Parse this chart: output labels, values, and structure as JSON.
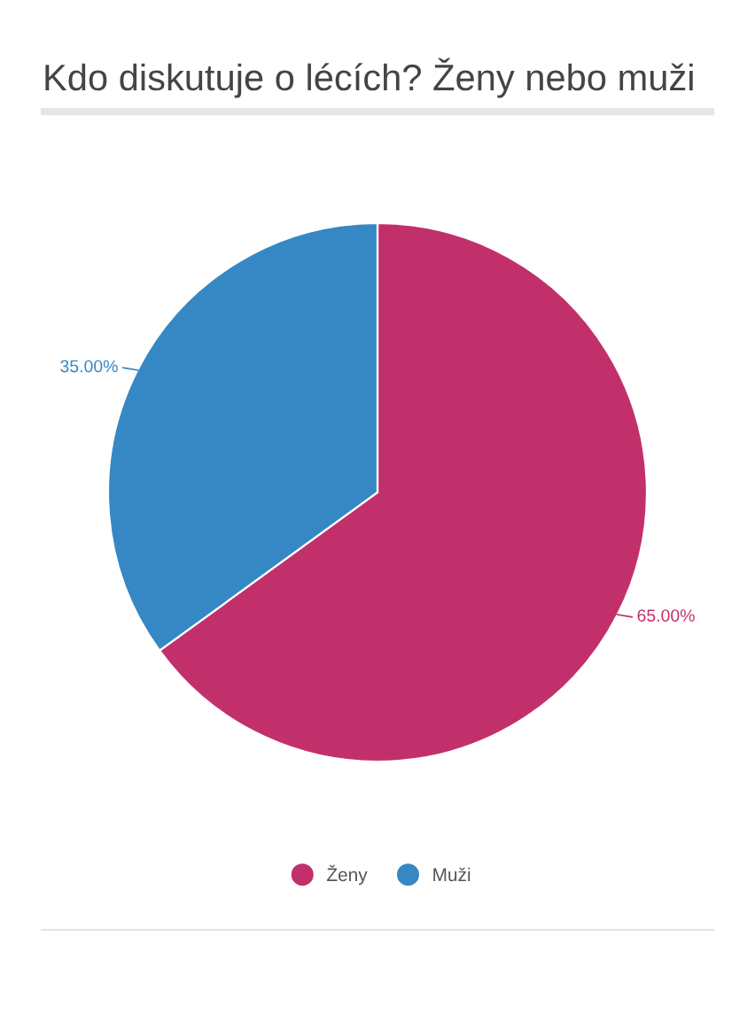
{
  "chart_data": {
    "type": "pie",
    "title": "Kdo diskutuje o lécích? Ženy nebo muži",
    "categories": [
      "Ženy",
      "Muži"
    ],
    "values": [
      65,
      35
    ],
    "colors": [
      "#c2306b",
      "#3588c4"
    ],
    "value_labels": [
      "65.00%",
      "35.00%"
    ],
    "legend": "bottom"
  }
}
